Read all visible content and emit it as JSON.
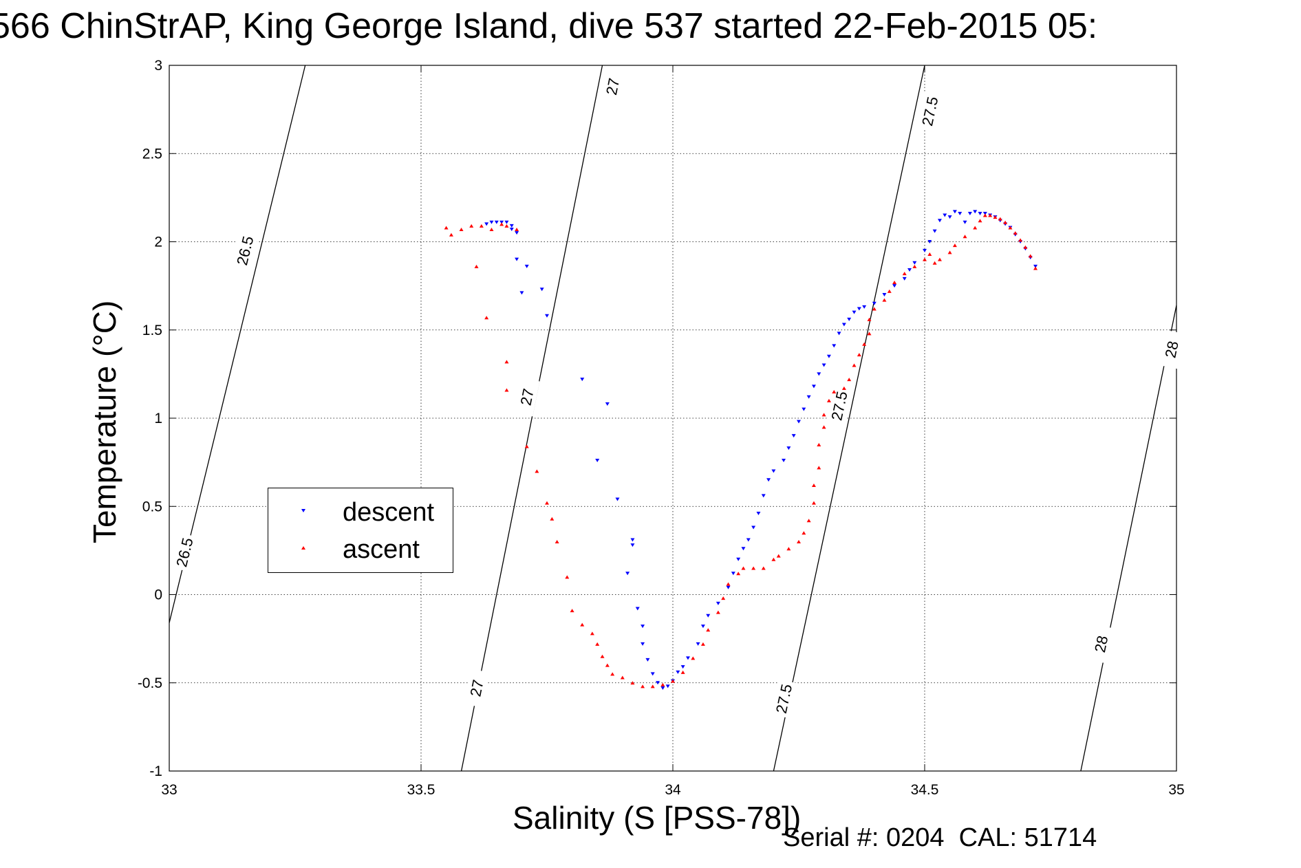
{
  "header": {
    "title": "566 ChinStrAP, King George Island, dive 537 started 22-Feb-2015 05:",
    "footer": "Serial #: 0204  CAL: 51714"
  },
  "chart_data": {
    "type": "scatter",
    "xlabel": "Salinity (S [PSS-78])",
    "ylabel": "Temperature (°C)",
    "xlim": [
      33,
      35
    ],
    "ylim": [
      -1,
      3
    ],
    "x_ticks": [
      "33",
      "33.5",
      "34",
      "34.5",
      "35"
    ],
    "y_ticks": [
      "-1",
      "-0.5",
      "0",
      "0.5",
      "1",
      "1.5",
      "2",
      "2.5",
      "3"
    ],
    "grid": true,
    "legend_position": "left-center",
    "colors": {
      "descent": "#0000ff",
      "ascent": "#ff0000"
    },
    "isopycnals": [
      {
        "level": "26.5",
        "points": [
          [
            33.0,
            -0.16
          ],
          [
            33.27,
            3.0
          ]
        ],
        "labels": [
          {
            "text": "26.5",
            "at": [
              33.15,
              1.95
            ]
          },
          {
            "text": "26.5",
            "at": [
              33.03,
              0.24
            ]
          }
        ]
      },
      {
        "level": "27",
        "points": [
          [
            33.58,
            -1.0
          ],
          [
            33.86,
            3.0
          ]
        ],
        "labels": [
          {
            "text": "27",
            "at": [
              33.88,
              2.88
            ]
          },
          {
            "text": "27",
            "at": [
              33.71,
              1.12
            ]
          },
          {
            "text": "27",
            "at": [
              33.61,
              -0.53
            ]
          }
        ]
      },
      {
        "level": "27.5",
        "points": [
          [
            34.2,
            -1.0
          ],
          [
            34.5,
            3.0
          ]
        ],
        "labels": [
          {
            "text": "27.5",
            "at": [
              34.51,
              2.74
            ]
          },
          {
            "text": "27.5",
            "at": [
              34.33,
              1.07
            ]
          },
          {
            "text": "27.5",
            "at": [
              34.22,
              -0.59
            ]
          }
        ]
      },
      {
        "level": "28",
        "points": [
          [
            34.81,
            -1.0
          ],
          [
            35.0,
            1.64
          ]
        ],
        "labels": [
          {
            "text": "28",
            "at": [
              34.99,
              1.39
            ]
          },
          {
            "text": "28",
            "at": [
              34.85,
              -0.28
            ]
          }
        ]
      }
    ],
    "series": [
      {
        "name": "descent",
        "marker": "triangle-down",
        "points": [
          [
            33.63,
            2.1
          ],
          [
            33.64,
            2.11
          ],
          [
            33.65,
            2.11
          ],
          [
            33.66,
            2.11
          ],
          [
            33.67,
            2.11
          ],
          [
            33.68,
            2.09
          ],
          [
            33.68,
            2.07
          ],
          [
            33.69,
            2.05
          ],
          [
            33.69,
            1.9
          ],
          [
            33.71,
            1.86
          ],
          [
            33.7,
            1.71
          ],
          [
            33.74,
            1.73
          ],
          [
            33.75,
            1.58
          ],
          [
            33.82,
            1.22
          ],
          [
            33.87,
            1.08
          ],
          [
            33.85,
            0.76
          ],
          [
            33.89,
            0.54
          ],
          [
            33.92,
            0.31
          ],
          [
            33.92,
            0.28
          ],
          [
            33.91,
            0.12
          ],
          [
            33.93,
            -0.08
          ],
          [
            33.94,
            -0.18
          ],
          [
            33.94,
            -0.28
          ],
          [
            33.95,
            -0.37
          ],
          [
            33.96,
            -0.45
          ],
          [
            33.97,
            -0.5
          ],
          [
            33.98,
            -0.53
          ],
          [
            33.99,
            -0.52
          ],
          [
            34.0,
            -0.49
          ],
          [
            34.01,
            -0.44
          ],
          [
            34.02,
            -0.41
          ],
          [
            34.03,
            -0.36
          ],
          [
            34.05,
            -0.28
          ],
          [
            34.06,
            -0.18
          ],
          [
            34.07,
            -0.12
          ],
          [
            34.09,
            -0.05
          ],
          [
            34.11,
            0.04
          ],
          [
            34.12,
            0.12
          ],
          [
            34.13,
            0.2
          ],
          [
            34.14,
            0.26
          ],
          [
            34.15,
            0.31
          ],
          [
            34.16,
            0.38
          ],
          [
            34.17,
            0.46
          ],
          [
            34.18,
            0.56
          ],
          [
            34.19,
            0.65
          ],
          [
            34.2,
            0.7
          ],
          [
            34.22,
            0.76
          ],
          [
            34.23,
            0.83
          ],
          [
            34.24,
            0.9
          ],
          [
            34.25,
            0.98
          ],
          [
            34.26,
            1.05
          ],
          [
            34.27,
            1.12
          ],
          [
            34.28,
            1.18
          ],
          [
            34.29,
            1.25
          ],
          [
            34.3,
            1.3
          ],
          [
            34.31,
            1.35
          ],
          [
            34.32,
            1.41
          ],
          [
            34.33,
            1.48
          ],
          [
            34.34,
            1.53
          ],
          [
            34.35,
            1.56
          ],
          [
            34.36,
            1.6
          ],
          [
            34.37,
            1.62
          ],
          [
            34.38,
            1.63
          ],
          [
            34.4,
            1.65
          ],
          [
            34.42,
            1.7
          ],
          [
            34.44,
            1.75
          ],
          [
            34.46,
            1.79
          ],
          [
            34.47,
            1.84
          ],
          [
            34.48,
            1.88
          ],
          [
            34.5,
            1.95
          ],
          [
            34.51,
            2.0
          ],
          [
            34.52,
            2.06
          ],
          [
            34.53,
            2.12
          ],
          [
            34.54,
            2.15
          ],
          [
            34.55,
            2.14
          ],
          [
            34.56,
            2.17
          ],
          [
            34.57,
            2.16
          ],
          [
            34.58,
            2.11
          ],
          [
            34.59,
            2.16
          ],
          [
            34.6,
            2.17
          ],
          [
            34.61,
            2.16
          ],
          [
            34.62,
            2.16
          ],
          [
            34.63,
            2.15
          ],
          [
            34.64,
            2.14
          ],
          [
            34.65,
            2.12
          ],
          [
            34.66,
            2.1
          ],
          [
            34.67,
            2.08
          ],
          [
            34.68,
            2.04
          ],
          [
            34.69,
            2.0
          ],
          [
            34.7,
            1.96
          ],
          [
            34.71,
            1.91
          ],
          [
            34.72,
            1.86
          ]
        ]
      },
      {
        "name": "ascent",
        "marker": "triangle-up",
        "points": [
          [
            33.55,
            2.08
          ],
          [
            33.56,
            2.04
          ],
          [
            33.58,
            2.07
          ],
          [
            33.6,
            2.09
          ],
          [
            33.62,
            2.09
          ],
          [
            33.64,
            2.07
          ],
          [
            33.66,
            2.1
          ],
          [
            33.67,
            2.09
          ],
          [
            33.69,
            2.07
          ],
          [
            33.61,
            1.86
          ],
          [
            33.63,
            1.57
          ],
          [
            33.67,
            1.32
          ],
          [
            33.67,
            1.16
          ],
          [
            33.71,
            0.84
          ],
          [
            33.73,
            0.7
          ],
          [
            33.75,
            0.52
          ],
          [
            33.76,
            0.43
          ],
          [
            33.77,
            0.3
          ],
          [
            33.79,
            0.1
          ],
          [
            33.8,
            -0.09
          ],
          [
            33.82,
            -0.17
          ],
          [
            33.84,
            -0.22
          ],
          [
            33.85,
            -0.28
          ],
          [
            33.86,
            -0.35
          ],
          [
            33.87,
            -0.4
          ],
          [
            33.88,
            -0.45
          ],
          [
            33.9,
            -0.47
          ],
          [
            33.92,
            -0.5
          ],
          [
            33.94,
            -0.52
          ],
          [
            33.96,
            -0.52
          ],
          [
            33.98,
            -0.51
          ],
          [
            34.0,
            -0.49
          ],
          [
            34.02,
            -0.44
          ],
          [
            34.04,
            -0.36
          ],
          [
            34.06,
            -0.28
          ],
          [
            34.07,
            -0.2
          ],
          [
            34.09,
            -0.1
          ],
          [
            34.1,
            -0.02
          ],
          [
            34.11,
            0.06
          ],
          [
            34.13,
            0.12
          ],
          [
            34.14,
            0.15
          ],
          [
            34.16,
            0.15
          ],
          [
            34.18,
            0.15
          ],
          [
            34.2,
            0.2
          ],
          [
            34.21,
            0.22
          ],
          [
            34.23,
            0.26
          ],
          [
            34.25,
            0.3
          ],
          [
            34.26,
            0.35
          ],
          [
            34.27,
            0.42
          ],
          [
            34.28,
            0.52
          ],
          [
            34.28,
            0.62
          ],
          [
            34.29,
            0.72
          ],
          [
            34.29,
            0.85
          ],
          [
            34.3,
            0.95
          ],
          [
            34.3,
            1.02
          ],
          [
            34.31,
            1.1
          ],
          [
            34.32,
            1.15
          ],
          [
            34.34,
            1.17
          ],
          [
            34.35,
            1.22
          ],
          [
            34.36,
            1.3
          ],
          [
            34.37,
            1.36
          ],
          [
            34.38,
            1.42
          ],
          [
            34.39,
            1.48
          ],
          [
            34.39,
            1.56
          ],
          [
            34.4,
            1.62
          ],
          [
            34.42,
            1.67
          ],
          [
            34.43,
            1.72
          ],
          [
            34.44,
            1.77
          ],
          [
            34.46,
            1.82
          ],
          [
            34.48,
            1.86
          ],
          [
            34.5,
            1.9
          ],
          [
            34.51,
            1.93
          ],
          [
            34.52,
            1.88
          ],
          [
            34.53,
            1.9
          ],
          [
            34.55,
            1.94
          ],
          [
            34.56,
            1.98
          ],
          [
            34.58,
            2.03
          ],
          [
            34.6,
            2.08
          ],
          [
            34.61,
            2.12
          ],
          [
            34.62,
            2.15
          ],
          [
            34.63,
            2.15
          ],
          [
            34.64,
            2.14
          ],
          [
            34.65,
            2.13
          ],
          [
            34.66,
            2.11
          ],
          [
            34.67,
            2.08
          ],
          [
            34.68,
            2.05
          ],
          [
            34.69,
            2.01
          ],
          [
            34.7,
            1.97
          ],
          [
            34.71,
            1.92
          ],
          [
            34.72,
            1.85
          ]
        ]
      }
    ]
  }
}
